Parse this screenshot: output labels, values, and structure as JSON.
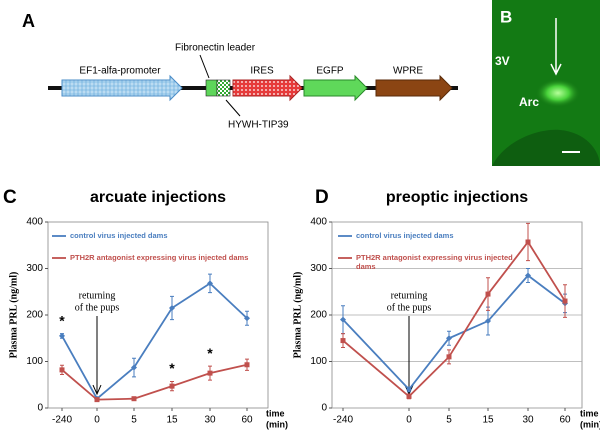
{
  "panels": {
    "a": {
      "letter": "A",
      "labels": {
        "promoter": "EF1-alfa-promoter",
        "leader": "Fibronectin leader",
        "ires": "IRES",
        "egfp": "EGFP",
        "wpre": "WPRE",
        "tip39": "HYWH-TIP39"
      }
    },
    "b": {
      "letter": "B",
      "ventricle": "3V",
      "nucleus": "Arc"
    }
  },
  "chart_data": [
    {
      "type": "line",
      "letter": "C",
      "title": "arcuate injections",
      "ylabel": "Plasma PRL (ng/ml)",
      "xlabel": [
        "time",
        "(min)"
      ],
      "categories": [
        "-240",
        "0",
        "5",
        "15",
        "30",
        "60"
      ],
      "ylim": [
        0,
        400
      ],
      "yticks": [
        0,
        100,
        200,
        300,
        400
      ],
      "grid": false,
      "annotation": [
        "returning",
        "of the pups"
      ],
      "significance": [
        "*",
        null,
        null,
        "*",
        "*",
        null
      ],
      "series": [
        {
          "name": "control virus injected dams",
          "color": "#4a7ebf",
          "values": [
            155,
            20,
            87,
            215,
            268,
            193
          ],
          "errors": [
            5,
            3,
            20,
            25,
            20,
            15
          ]
        },
        {
          "name": "PTH2R antagonist expressing virus injected dams",
          "color": "#c0504d",
          "values": [
            82,
            18,
            20,
            47,
            75,
            93
          ],
          "errors": [
            10,
            3,
            3,
            10,
            15,
            12
          ]
        }
      ]
    },
    {
      "type": "line",
      "letter": "D",
      "title": "preoptic injections",
      "ylabel": "Plasma PRL (ng/ml)",
      "xlabel": [
        "time",
        "(min)"
      ],
      "categories": [
        "-240",
        "0",
        "5",
        "15",
        "30",
        "60"
      ],
      "ylim": [
        0,
        400
      ],
      "yticks": [
        0,
        100,
        200,
        300,
        400
      ],
      "grid": true,
      "annotation": [
        "returning",
        "of the pups"
      ],
      "series": [
        {
          "name": "control virus injected dams",
          "color": "#4a7ebf",
          "values": [
            190,
            40,
            150,
            187,
            285,
            225
          ],
          "errors": [
            30,
            5,
            15,
            30,
            15,
            20
          ]
        },
        {
          "name": "PTH2R antagonist expressing virus injected dams",
          "color": "#c0504d",
          "values": [
            145,
            25,
            110,
            245,
            357,
            230
          ],
          "errors": [
            15,
            5,
            15,
            35,
            40,
            35
          ]
        }
      ]
    }
  ]
}
